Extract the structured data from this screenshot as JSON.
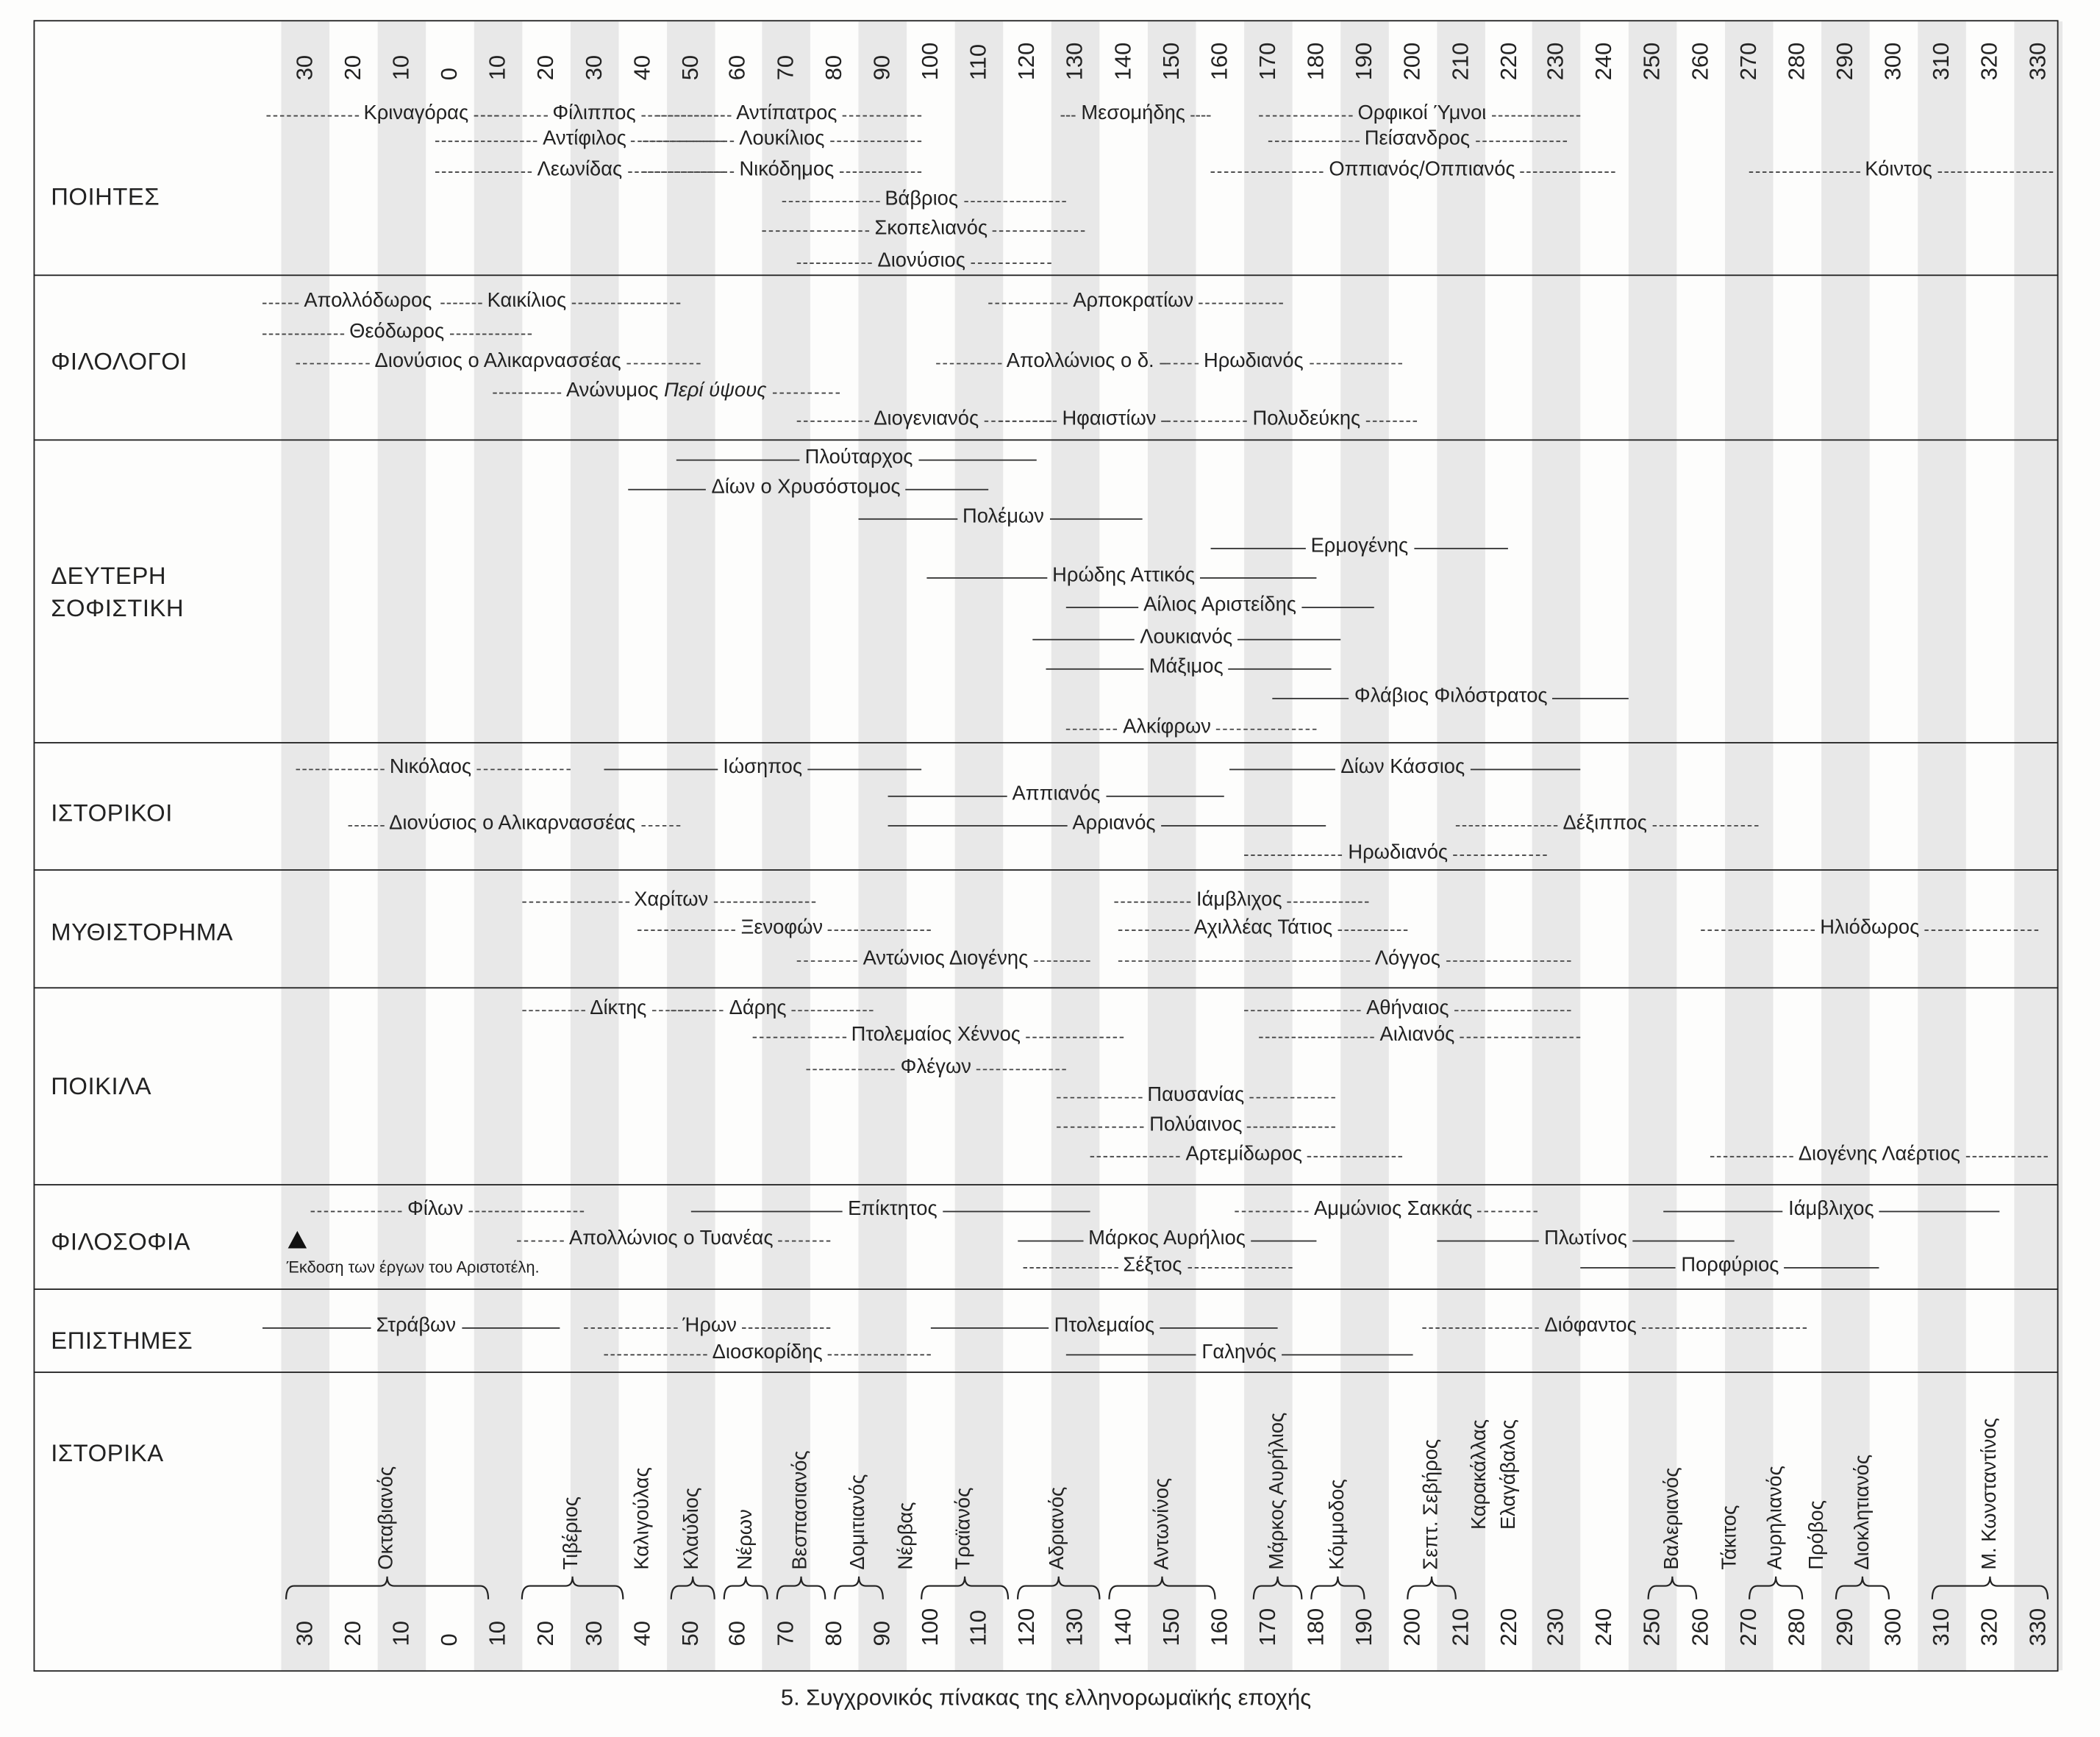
{
  "caption": "5. Συγχρονικός πίνακας της ελληνορωμαϊκής εποχής",
  "year_ticks": [
    "30",
    "20",
    "10",
    "0",
    "10",
    "20",
    "30",
    "40",
    "50",
    "60",
    "70",
    "80",
    "90",
    "100",
    "110",
    "120",
    "130",
    "140",
    "150",
    "160",
    "170",
    "180",
    "190",
    "200",
    "210",
    "220",
    "230",
    "240",
    "250",
    "260",
    "270",
    "280",
    "290",
    "300",
    "310",
    "320",
    "330"
  ],
  "philosophy_note": "Έκδοση των έργων του Αριστοτέλη.",
  "chart_data": {
    "type": "timeline",
    "x_unit": "year",
    "xlim": [
      -30,
      330
    ],
    "sections": [
      {
        "key": "poiites",
        "label": "ΠΟΙΗΤΕΣ",
        "rows": [
          [
            {
              "n": "Κριναγόρας",
              "a": -38,
              "c": -7,
              "b": 10,
              "s": "d"
            },
            {
              "n": "Φίλιππος",
              "a": 5,
              "c": 30,
              "b": 57,
              "s": "d"
            },
            {
              "n": "Αντίπατρος",
              "a": 43,
              "c": 70,
              "b": 98,
              "s": "d"
            },
            {
              "n": "Μεσομήδης",
              "a": 127,
              "c": 142,
              "b": 158,
              "s": "d"
            },
            {
              "n": "Ορφικοί Ύμνοι",
              "a": 168,
              "c": 202,
              "b": 235,
              "s": "d"
            }
          ],
          [
            {
              "n": "Αντίφιλος",
              "a": -3,
              "c": 28,
              "b": 57,
              "s": "d"
            },
            {
              "n": "Λουκίλιος",
              "a": 40,
              "c": 69,
              "b": 98,
              "s": "d"
            },
            {
              "n": "Πείσανδρος",
              "a": 170,
              "c": 201,
              "b": 232,
              "s": "d"
            }
          ],
          [
            {
              "n": "Λεωνίδας",
              "a": -3,
              "c": 27,
              "b": 57,
              "s": "d"
            },
            {
              "n": "Νικόδημος",
              "a": 40,
              "c": 70,
              "b": 98,
              "s": "d"
            },
            {
              "n": "Οππιανός/Οππιανός",
              "a": 158,
              "c": 202,
              "b": 242,
              "s": "d"
            },
            {
              "n": "Κόιντος",
              "a": 270,
              "c": 301,
              "b": 333,
              "s": "d"
            }
          ],
          [
            {
              "n": "Βάβριος",
              "a": 69,
              "c": 98,
              "b": 128,
              "s": "d"
            }
          ],
          [
            {
              "n": "Σκοπελιανός",
              "a": 65,
              "c": 100,
              "b": 132,
              "s": "d"
            }
          ],
          [
            {
              "n": "Διονύσιος",
              "a": 72,
              "c": 98,
              "b": 125,
              "s": "d"
            }
          ]
        ]
      },
      {
        "key": "filologoi",
        "label": "ΦΙΛΟΛΟΓΟΙ",
        "rows": [
          [
            {
              "n": "Απολλόδωρος",
              "a": -39,
              "c": -17,
              "b": -2,
              "s": "d"
            },
            {
              "n": "Καικίλιος",
              "a": -2,
              "c": 16,
              "b": 48,
              "s": "d"
            },
            {
              "n": "Αρποκρατίων",
              "a": 112,
              "c": 142,
              "b": 173,
              "s": "d"
            }
          ],
          [
            {
              "n": "Θεόδωρος",
              "a": -39,
              "c": -11,
              "b": 17,
              "s": "d"
            }
          ],
          [
            {
              "n": "Διονύσιος ο Αλικαρνασσέας",
              "a": -32,
              "c": 10,
              "b": 52,
              "s": "d"
            },
            {
              "n": "Απολλώνιος ο δ.",
              "a": 101,
              "c": 131,
              "b": 149,
              "s": "d"
            },
            {
              "n": "Ηρωδιανός",
              "a": 149,
              "c": 167,
              "b": 198,
              "s": "d"
            }
          ],
          [
            {
              "n": "Ανώνυμος",
              "i": "Περί ύψους",
              "a": 9,
              "c": 45,
              "b": 81,
              "s": "d"
            }
          ],
          [
            {
              "n": "Διογενιανός",
              "a": 72,
              "c": 99,
              "b": 125,
              "s": "d"
            },
            {
              "n": "Ηφαιστίων",
              "a": 114,
              "c": 137,
              "b": 149,
              "s": "d"
            },
            {
              "n": "Πολυδεύκης",
              "a": 149,
              "c": 178,
              "b": 201,
              "s": "d"
            }
          ]
        ]
      },
      {
        "key": "sofistiki",
        "label": "ΔΕΥΤΕΡΗ\nΣΟΦΙΣΤΙΚΗ",
        "label_lines": [
          "ΔΕΥΤΕΡΗ",
          "ΣΟΦΙΣΤΙΚΗ"
        ],
        "rows": [
          [
            {
              "n": "Πλούταρχος",
              "a": 47,
              "c": 85,
              "b": 122,
              "s": "s"
            }
          ],
          [
            {
              "n": "Δίων ο Χρυσόστομος",
              "a": 37,
              "c": 74,
              "b": 112,
              "s": "s"
            }
          ],
          [
            {
              "n": "Πολέμων",
              "a": 85,
              "c": 115,
              "b": 144,
              "s": "s"
            }
          ],
          [
            {
              "n": "Ερμογένης",
              "a": 158,
              "c": 189,
              "b": 220,
              "s": "s"
            }
          ],
          [
            {
              "n": "Ηρώδης Αττικός",
              "a": 99,
              "c": 140,
              "b": 180,
              "s": "s"
            }
          ],
          [
            {
              "n": "Αίλιος Αριστείδης",
              "a": 128,
              "c": 160,
              "b": 192,
              "s": "s"
            }
          ],
          [
            {
              "n": "Λουκιανός",
              "a": 121,
              "c": 153,
              "b": 185,
              "s": "s"
            }
          ],
          [
            {
              "n": "Μάξιμος",
              "a": 124,
              "c": 153,
              "b": 183,
              "s": "s"
            }
          ],
          [
            {
              "n": "Φλάβιος Φιλόστρατος",
              "a": 171,
              "c": 208,
              "b": 245,
              "s": "s"
            }
          ],
          [
            {
              "n": "Αλκίφρων",
              "a": 128,
              "c": 149,
              "b": 180,
              "s": "d"
            }
          ]
        ]
      },
      {
        "key": "istorikoi",
        "label": "ΙΣΤΟΡΙΚΟΙ",
        "rows": [
          [
            {
              "n": "Νικόλαος",
              "a": -32,
              "c": -4,
              "b": 25,
              "s": "d"
            },
            {
              "n": "Ιώσηπος",
              "a": 32,
              "c": 65,
              "b": 98,
              "s": "s"
            },
            {
              "n": "Δίων Κάσσιος",
              "a": 162,
              "c": 198,
              "b": 235,
              "s": "s"
            }
          ],
          [
            {
              "n": "Αππιανός",
              "a": 91,
              "c": 126,
              "b": 161,
              "s": "s"
            }
          ],
          [
            {
              "n": "Διονύσιος ο Αλικαρνασσέας",
              "a": -21,
              "c": 13,
              "b": 48,
              "s": "d"
            },
            {
              "n": "Αρριανός",
              "a": 91,
              "c": 138,
              "b": 182,
              "s": "s"
            },
            {
              "n": "Δέξιππος",
              "a": 209,
              "c": 240,
              "b": 272,
              "s": "d"
            }
          ],
          [
            {
              "n": "Ηρωδιανός",
              "a": 165,
              "c": 197,
              "b": 228,
              "s": "d"
            }
          ]
        ]
      },
      {
        "key": "mythistorima",
        "label": "ΜΥΘΙΣΤΟΡΗΜΑ",
        "rows": [
          [
            {
              "n": "Χαρίτων",
              "a": 15,
              "c": 46,
              "b": 76,
              "s": "d"
            },
            {
              "n": "Ιάμβλιχος",
              "a": 138,
              "c": 164,
              "b": 191,
              "s": "d"
            }
          ],
          [
            {
              "n": "Ξενοφών",
              "a": 39,
              "c": 69,
              "b": 100,
              "s": "d"
            },
            {
              "n": "Αχιλλέας Τάτιος",
              "a": 139,
              "c": 169,
              "b": 199,
              "s": "d"
            },
            {
              "n": "Ηλιόδωρος",
              "a": 260,
              "c": 295,
              "b": 330,
              "s": "d"
            }
          ],
          [
            {
              "n": "Αντώνιος Διογένης",
              "a": 72,
              "c": 103,
              "b": 133,
              "s": "d"
            },
            {
              "n": "Λόγγος",
              "a": 139,
              "c": 199,
              "b": 233,
              "s": "d"
            }
          ]
        ]
      },
      {
        "key": "poikila",
        "label": "ΠΟΙΚΙΛΑ",
        "rows": [
          [
            {
              "n": "Δίκτης",
              "a": 15,
              "c": 35,
              "b": 54,
              "s": "d"
            },
            {
              "n": "Δάρης",
              "a": 46,
              "c": 64,
              "b": 88,
              "s": "d"
            },
            {
              "n": "Αθήναιος",
              "a": 165,
              "c": 199,
              "b": 233,
              "s": "d"
            }
          ],
          [
            {
              "n": "Πτολεμαίος Χέννος",
              "a": 63,
              "c": 101,
              "b": 140,
              "s": "d"
            },
            {
              "n": "Αιλιανός",
              "a": 168,
              "c": 201,
              "b": 235,
              "s": "d"
            }
          ],
          [
            {
              "n": "Φλέγων",
              "a": 74,
              "c": 101,
              "b": 128,
              "s": "d"
            }
          ],
          [
            {
              "n": "Παυσανίας",
              "a": 126,
              "c": 155,
              "b": 184,
              "s": "d"
            }
          ],
          [
            {
              "n": "Πολύαινος",
              "a": 126,
              "c": 155,
              "b": 184,
              "s": "d"
            }
          ],
          [
            {
              "n": "Αρτεμίδωρος",
              "a": 133,
              "c": 165,
              "b": 198,
              "s": "d"
            },
            {
              "n": "Διογένης Λαέρτιος",
              "a": 262,
              "c": 297,
              "b": 332,
              "s": "d"
            }
          ]
        ]
      },
      {
        "key": "filosofia",
        "label": "ΦΙΛΟΣΟΦΙΑ",
        "rows": [
          [
            {
              "n": "Φίλων",
              "a": -29,
              "c": -3,
              "b": 28,
              "s": "d"
            },
            {
              "n": "Επίκτητος",
              "a": 50,
              "c": 92,
              "b": 133,
              "s": "s"
            },
            {
              "n": "Αμμώνιος Σακκάς",
              "a": 163,
              "c": 196,
              "b": 226,
              "s": "d"
            },
            {
              "n": "Ιάμβλιχος",
              "a": 252,
              "c": 287,
              "b": 322,
              "s": "s"
            }
          ],
          [
            {
              "n": "Απολλώνιος ο Τυανέας",
              "a": 14,
              "c": 46,
              "b": 79,
              "s": "d"
            },
            {
              "n": "Μάρκος Αυρήλιος",
              "a": 118,
              "c": 149,
              "b": 180,
              "s": "s"
            },
            {
              "n": "Πλωτίνος",
              "a": 205,
              "c": 236,
              "b": 267,
              "s": "s"
            }
          ],
          [
            {
              "n": "Σέξτος",
              "a": 119,
              "c": 146,
              "b": 175,
              "s": "d"
            },
            {
              "n": "Πορφύριος",
              "a": 235,
              "c": 266,
              "b": 297,
              "s": "s"
            }
          ]
        ]
      },
      {
        "key": "epistimes",
        "label": "ΕΠΙΣΤΗΜΕΣ",
        "rows": [
          [
            {
              "n": "Στράβων",
              "a": -39,
              "c": -7,
              "b": 23,
              "s": "s"
            },
            {
              "n": "Ήρων",
              "a": 28,
              "c": 54,
              "b": 79,
              "s": "d"
            },
            {
              "n": "Πτολεμαίος",
              "a": 100,
              "c": 136,
              "b": 172,
              "s": "s"
            },
            {
              "n": "Διόφαντος",
              "a": 202,
              "c": 237,
              "b": 282,
              "s": "d"
            }
          ],
          [
            {
              "n": "Διοσκορίδης",
              "a": 32,
              "c": 66,
              "b": 100,
              "s": "d"
            },
            {
              "n": "Γαληνός",
              "a": 128,
              "c": 164,
              "b": 200,
              "s": "s"
            }
          ]
        ]
      },
      {
        "key": "istorika",
        "label": "ΙΣΤΟΡΙΚΑ",
        "rows": []
      }
    ],
    "emperors": [
      {
        "n": "Οκταβιανός",
        "from": -34,
        "to": 8
      },
      {
        "n": "Τιβέριος",
        "from": 15,
        "to": 36
      },
      {
        "n": "Καλιγούλας",
        "at": 40
      },
      {
        "n": "Κλαύδιος",
        "from": 46,
        "to": 55
      },
      {
        "n": "Νέρων",
        "from": 57,
        "to": 66
      },
      {
        "n": "Βεσπασιανός",
        "from": 68,
        "to": 78
      },
      {
        "n": "Δομιτιανός",
        "from": 80,
        "to": 90
      },
      {
        "n": "Νέρβας",
        "at": 95
      },
      {
        "n": "Τραϊανός",
        "from": 98,
        "to": 116
      },
      {
        "n": "Αδριανός",
        "from": 118,
        "to": 135
      },
      {
        "n": "Αντωνίνος",
        "from": 137,
        "to": 159
      },
      {
        "n": "Μάρκος Αυρήλιος",
        "from": 167,
        "to": 177
      },
      {
        "n": "Κόμμοδος",
        "from": 179,
        "to": 190
      },
      {
        "n": "Σεπτ. Σεβήρος",
        "from": 199,
        "to": 209
      },
      {
        "n": "Καρακάλλας",
        "at": 214,
        "short": true
      },
      {
        "n": "Ελαγάβαλος",
        "at": 220,
        "short": true
      },
      {
        "n": "Βαλεριανός",
        "from": 249,
        "to": 259
      },
      {
        "n": "Τάκιτος",
        "at": 266
      },
      {
        "n": "Αυρηλιανός",
        "from": 270,
        "to": 281
      },
      {
        "n": "Πρόβος",
        "at": 284
      },
      {
        "n": "Διοκλητιανός",
        "from": 288,
        "to": 299
      },
      {
        "n": "Μ. Κωνσταντίνος",
        "from": 308,
        "to": 332
      }
    ]
  }
}
